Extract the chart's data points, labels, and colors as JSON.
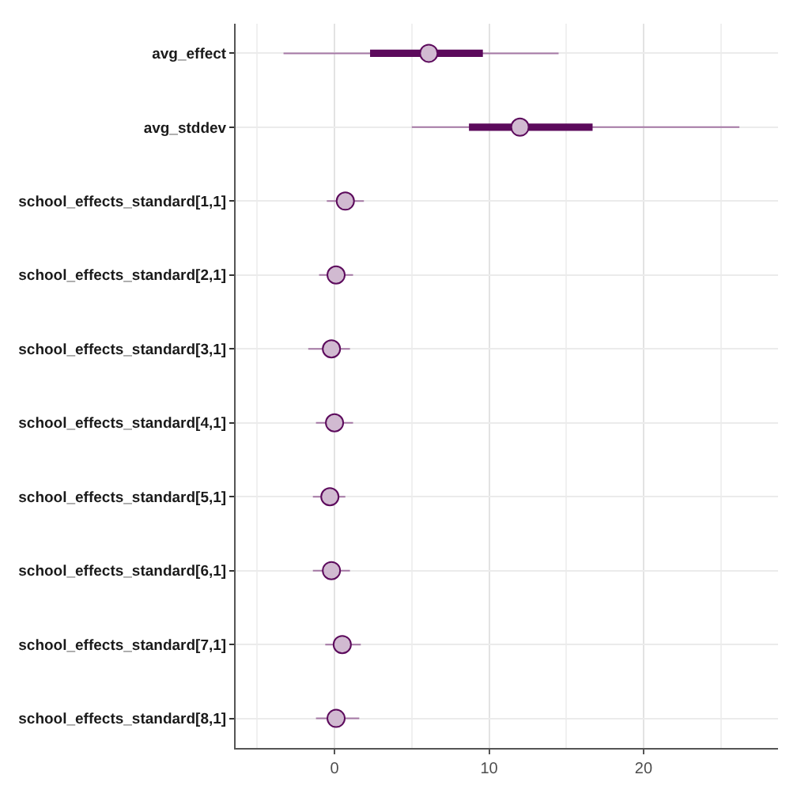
{
  "chart_data": {
    "type": "box",
    "orientation": "horizontal",
    "categories": [
      "avg_effect",
      "avg_stddev",
      "school_effects_standard[1,1]",
      "school_effects_standard[2,1]",
      "school_effects_standard[3,1]",
      "school_effects_standard[4,1]",
      "school_effects_standard[5,1]",
      "school_effects_standard[6,1]",
      "school_effects_standard[7,1]",
      "school_effects_standard[8,1]"
    ],
    "series": [
      {
        "color": "#5c0a5c",
        "boxes": [
          {
            "low": -3.3,
            "q1": 2.3,
            "median": 6.1,
            "q3": 9.6,
            "high": 14.5
          },
          {
            "low": 5.0,
            "q1": 8.7,
            "median": 12.0,
            "q3": 16.7,
            "high": 26.2
          },
          {
            "low": -0.5,
            "q1": 0.3,
            "median": 0.7,
            "q3": 1.1,
            "high": 1.9
          },
          {
            "low": -1.0,
            "q1": -0.3,
            "median": 0.1,
            "q3": 0.5,
            "high": 1.2
          },
          {
            "low": -1.7,
            "q1": -0.6,
            "median": -0.2,
            "q3": 0.2,
            "high": 1.0
          },
          {
            "low": -1.2,
            "q1": -0.4,
            "median": 0.0,
            "q3": 0.4,
            "high": 1.2
          },
          {
            "low": -1.4,
            "q1": -0.7,
            "median": -0.3,
            "q3": 0.1,
            "high": 0.7
          },
          {
            "low": -1.4,
            "q1": -0.6,
            "median": -0.2,
            "q3": 0.2,
            "high": 1.0
          },
          {
            "low": -0.6,
            "q1": 0.1,
            "median": 0.5,
            "q3": 0.9,
            "high": 1.7
          },
          {
            "low": -1.2,
            "q1": -0.3,
            "median": 0.1,
            "q3": 0.5,
            "high": 1.6
          }
        ]
      }
    ],
    "xlim": [
      -6.4,
      28.7
    ],
    "xticks": [
      0,
      10,
      20
    ],
    "grid": true,
    "marker": "circle"
  }
}
